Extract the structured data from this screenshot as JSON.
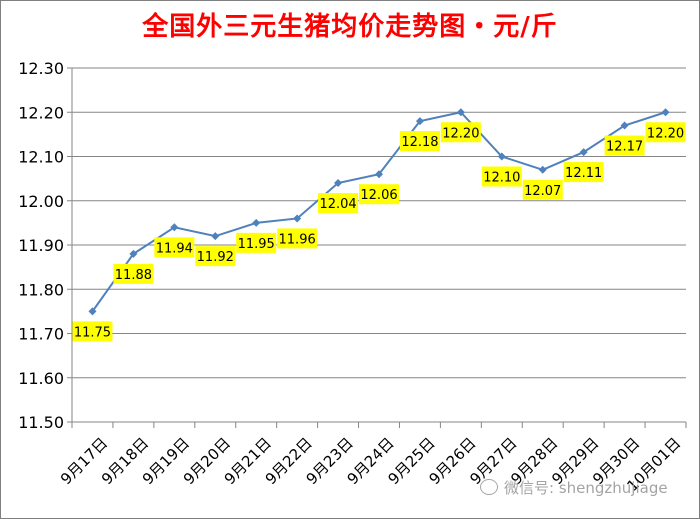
{
  "chart_data": {
    "type": "line",
    "title": "全国外三元生猪均价走势图・元/斤",
    "categories": [
      "9月17日",
      "9月18日",
      "9月19日",
      "9月20日",
      "9月21日",
      "9月22日",
      "9月23日",
      "9月24日",
      "9月25日",
      "9月26日",
      "9月27日",
      "9月28日",
      "9月29日",
      "9月30日",
      "10月01日"
    ],
    "values": [
      11.75,
      11.88,
      11.94,
      11.92,
      11.95,
      11.96,
      12.04,
      12.06,
      12.18,
      12.2,
      12.1,
      12.07,
      12.11,
      12.17,
      12.2
    ],
    "data_labels": [
      "11.75",
      "11.88",
      "11.94",
      "11.92",
      "11.95",
      "11.96",
      "12.04",
      "12.06",
      "12.18",
      "12.20",
      "12.10",
      "12.07",
      "12.11",
      "12.17",
      "12.20"
    ],
    "ylim": [
      11.5,
      12.3
    ],
    "yticks": [
      "11.50",
      "11.60",
      "11.70",
      "11.80",
      "11.90",
      "12.00",
      "12.10",
      "12.20",
      "12.30"
    ],
    "ytick_values": [
      11.5,
      11.6,
      11.7,
      11.8,
      11.9,
      12.0,
      12.1,
      12.2,
      12.3
    ],
    "grid": true,
    "line_color": "#4f81bd",
    "label_bg_color": "#ffff00"
  },
  "watermark": "微信号: shengzhujiage"
}
